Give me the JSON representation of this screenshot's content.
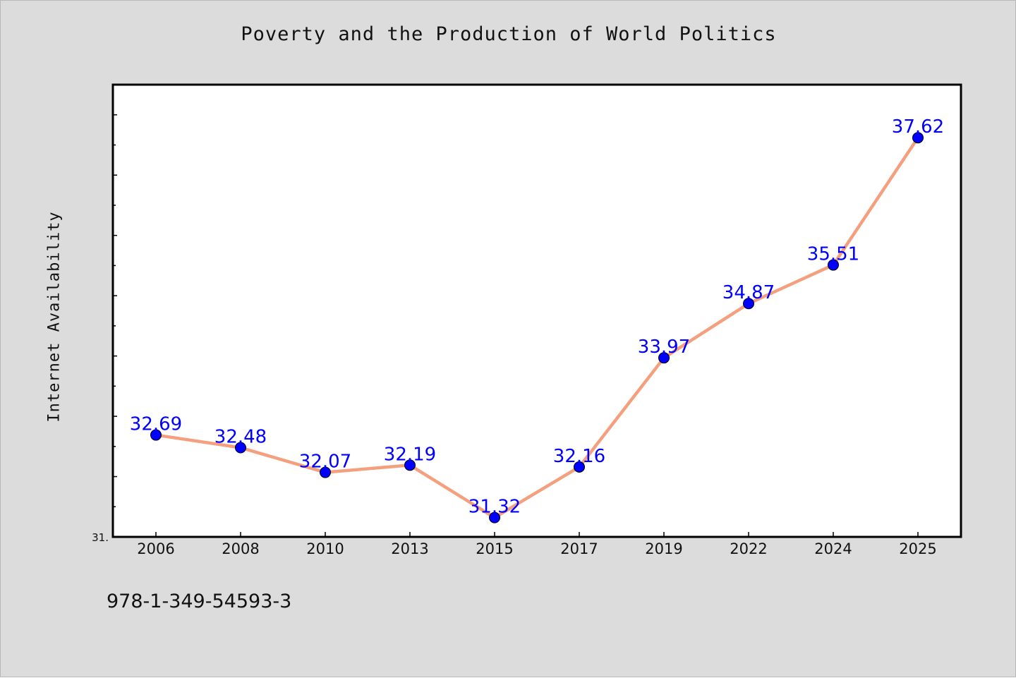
{
  "page": {
    "footer_code": "978-1-349-54593-3"
  },
  "chart_data": {
    "type": "line",
    "title": "Poverty and the Production of World Politics",
    "xlabel": "",
    "ylabel": "Internet Availability",
    "categories": [
      "2006",
      "2008",
      "2010",
      "2013",
      "2015",
      "2017",
      "2019",
      "2022",
      "2024",
      "2025"
    ],
    "series": [
      {
        "values": [
          32.69,
          32.48,
          32.07,
          32.19,
          31.32,
          32.16,
          33.97,
          34.87,
          35.51,
          37.62
        ],
        "labels": [
          "32.69",
          "32.48",
          "32.07",
          "32.19",
          "31.32",
          "32.16",
          "33.97",
          "34.87",
          "35.51",
          "37.62"
        ],
        "line_color": "#f4a07f",
        "marker_color": "#0000ff"
      }
    ],
    "ylim": [
      31.0,
      38.5
    ],
    "y_tick_label": "31.",
    "grid": false,
    "legend": "none",
    "background": "#dcdcdc",
    "plot_background": "#ffffff",
    "label_color": "#0000ff"
  }
}
